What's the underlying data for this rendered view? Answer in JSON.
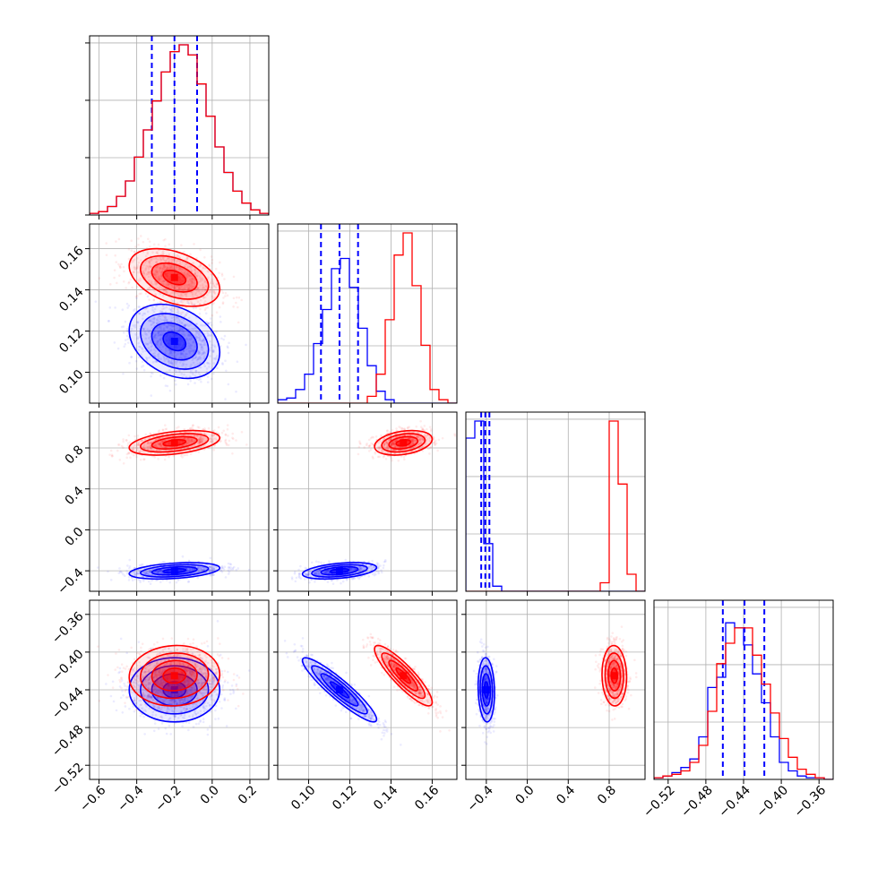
{
  "chart_data": {
    "type": "corner",
    "description_free": true,
    "grid": true,
    "colors": {
      "set_a": "#0000ff",
      "set_b": "#ff0000",
      "grid": "#b0b0b0",
      "frame": "#000000"
    },
    "parameters": [
      {
        "range": [
          -0.65,
          0.3
        ],
        "ticks": [
          -0.6,
          -0.4,
          -0.2,
          0.0,
          0.2
        ],
        "tick_labels": [
          "−0.6",
          "−0.4",
          "−0.2",
          "0.0",
          "0.2"
        ]
      },
      {
        "range": [
          0.085,
          0.172
        ],
        "ticks": [
          0.1,
          0.12,
          0.14,
          0.16
        ],
        "tick_labels": [
          "0.10",
          "0.12",
          "0.14",
          "0.16"
        ]
      },
      {
        "range": [
          -0.6,
          1.15
        ],
        "ticks": [
          -0.4,
          0.0,
          0.4,
          0.8
        ],
        "tick_labels": [
          "−0.4",
          "0.0",
          "0.4",
          "0.8"
        ]
      },
      {
        "range": [
          -0.535,
          -0.345
        ],
        "ticks": [
          -0.52,
          -0.48,
          -0.44,
          -0.4,
          -0.36
        ],
        "tick_labels": [
          "−0.52",
          "−0.48",
          "−0.44",
          "−0.40",
          "−0.36"
        ]
      }
    ],
    "series": [
      {
        "color": "#0000ff",
        "means": [
          -0.2,
          0.115,
          -0.4,
          -0.44
        ],
        "sds": [
          0.12,
          0.009,
          0.04,
          0.017
        ],
        "quantile_lines": [
          [
            -0.32,
            -0.2,
            -0.08
          ],
          [
            0.106,
            0.115,
            0.124
          ],
          [
            -0.45,
            -0.41,
            -0.37
          ],
          [
            -0.462,
            -0.439,
            -0.418
          ]
        ],
        "hist_heights": [
          [
            0.01,
            0.02,
            0.05,
            0.11,
            0.2,
            0.34,
            0.5,
            0.67,
            0.84,
            0.96,
            1.0,
            0.94,
            0.77,
            0.58,
            0.4,
            0.25,
            0.14,
            0.07,
            0.03,
            0.01
          ],
          [
            0.02,
            0.03,
            0.08,
            0.17,
            0.35,
            0.55,
            0.79,
            0.85,
            0.68,
            0.44,
            0.22,
            0.07,
            0.02,
            0,
            0,
            0,
            0,
            0,
            0,
            0
          ],
          [
            0.9,
            1.0,
            0.28,
            0.03,
            0,
            0,
            0,
            0,
            0,
            0,
            0,
            0,
            0,
            0,
            0,
            0,
            0,
            0,
            0,
            0
          ],
          [
            0.01,
            0.02,
            0.04,
            0.07,
            0.12,
            0.25,
            0.54,
            0.6,
            0.92,
            0.89,
            0.79,
            0.62,
            0.45,
            0.25,
            0.1,
            0.05,
            0.02,
            0.01,
            0.01,
            0
          ]
        ],
        "correlations": {
          "1-0": -0.3,
          "2-0": 0.35,
          "2-1": 0.4,
          "3-0": 0.0,
          "3-1": -0.92,
          "3-2": -0.1
        }
      },
      {
        "color": "#ff0000",
        "means": [
          -0.2,
          0.146,
          0.85,
          -0.425
        ],
        "sds": [
          0.12,
          0.007,
          0.06,
          0.016
        ],
        "quantile_lines": [],
        "hist_heights": [
          [
            0.01,
            0.02,
            0.05,
            0.11,
            0.2,
            0.34,
            0.5,
            0.67,
            0.84,
            0.96,
            1.0,
            0.94,
            0.77,
            0.58,
            0.4,
            0.25,
            0.14,
            0.07,
            0.03,
            0.01
          ],
          [
            0,
            0,
            0,
            0,
            0,
            0,
            0,
            0,
            0,
            0,
            0.04,
            0.17,
            0.49,
            0.87,
            1.0,
            0.69,
            0.34,
            0.08,
            0.02,
            0
          ],
          [
            0,
            0,
            0,
            0,
            0,
            0,
            0,
            0,
            0,
            0,
            0,
            0,
            0,
            0,
            0,
            0.05,
            1.0,
            0.63,
            0.1,
            0
          ],
          [
            0.01,
            0.02,
            0.03,
            0.05,
            0.1,
            0.2,
            0.4,
            0.68,
            0.8,
            0.89,
            0.89,
            0.73,
            0.56,
            0.39,
            0.24,
            0.13,
            0.06,
            0.03,
            0.01,
            0
          ]
        ],
        "correlations": {
          "1-0": -0.4,
          "2-0": 0.4,
          "2-1": 0.3,
          "3-0": 0.05,
          "3-1": -0.88,
          "3-2": -0.05
        }
      }
    ]
  }
}
